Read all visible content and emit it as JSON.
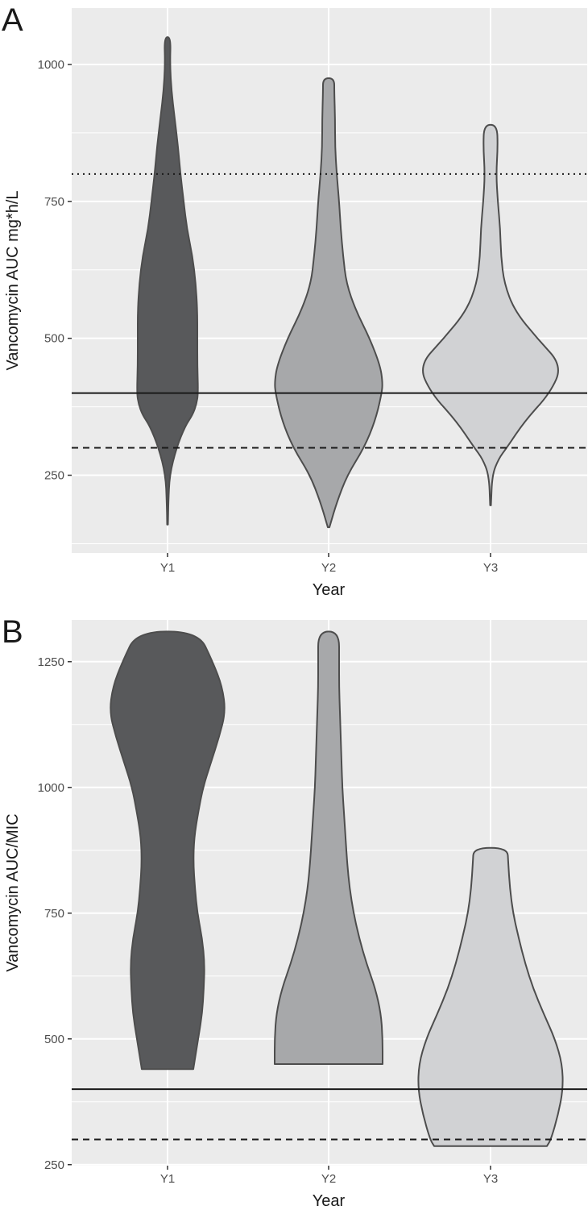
{
  "chart_data": [
    {
      "panel_label": "A",
      "type": "violin",
      "xlabel": "Year",
      "ylabel": "Vancomycin AUC mg*h/L",
      "categories": [
        "Y1",
        "Y2",
        "Y3"
      ],
      "yticks": [
        250,
        500,
        750,
        1000
      ],
      "ylim": [
        108,
        1103
      ],
      "grid": true,
      "reference_lines": [
        {
          "y": 400,
          "style": "solid"
        },
        {
          "y": 300,
          "style": "dashed"
        },
        {
          "y": 800,
          "style": "dotted"
        }
      ],
      "series": [
        {
          "category": "Y1",
          "fill": "#58595b",
          "profile": [
            [
              160,
              0.5
            ],
            [
              200,
              1
            ],
            [
              250,
              2.5
            ],
            [
              300,
              11
            ],
            [
              340,
              22
            ],
            [
              360,
              31
            ],
            [
              380,
              36
            ],
            [
              400,
              38
            ],
            [
              450,
              37
            ],
            [
              500,
              37
            ],
            [
              550,
              37
            ],
            [
              600,
              35
            ],
            [
              650,
              31
            ],
            [
              700,
              24
            ],
            [
              750,
              20
            ],
            [
              800,
              16
            ],
            [
              850,
              13
            ],
            [
              900,
              9
            ],
            [
              950,
              5
            ],
            [
              1000,
              3
            ],
            [
              1050,
              4
            ]
          ]
        },
        {
          "category": "Y2",
          "fill": "#a7a8aa",
          "profile": [
            [
              155,
              1
            ],
            [
              200,
              10
            ],
            [
              250,
              23
            ],
            [
              300,
              44
            ],
            [
              350,
              58
            ],
            [
              400,
              66
            ],
            [
              420,
              67
            ],
            [
              450,
              64
            ],
            [
              500,
              51
            ],
            [
              550,
              34
            ],
            [
              600,
              22
            ],
            [
              650,
              18
            ],
            [
              700,
              15
            ],
            [
              750,
              13
            ],
            [
              800,
              10
            ],
            [
              850,
              8
            ],
            [
              900,
              8
            ],
            [
              950,
              7
            ],
            [
              975,
              7
            ]
          ]
        },
        {
          "category": "Y3",
          "fill": "#d1d2d4",
          "profile": [
            [
              195,
              0.5
            ],
            [
              250,
              2
            ],
            [
              280,
              10
            ],
            [
              300,
              20
            ],
            [
              350,
              43
            ],
            [
              400,
              74
            ],
            [
              450,
              89
            ],
            [
              500,
              58
            ],
            [
              550,
              30
            ],
            [
              600,
              17
            ],
            [
              650,
              13
            ],
            [
              700,
              12
            ],
            [
              750,
              9
            ],
            [
              800,
              7
            ],
            [
              850,
              9
            ],
            [
              890,
              8
            ]
          ]
        }
      ]
    },
    {
      "panel_label": "B",
      "type": "violin",
      "xlabel": "Year",
      "ylabel": "Vancomycin AUC/MIC",
      "categories": [
        "Y1",
        "Y2",
        "Y3"
      ],
      "yticks": [
        250,
        500,
        750,
        1000,
        1250
      ],
      "ylim": [
        248,
        1333
      ],
      "grid": true,
      "reference_lines": [
        {
          "y": 400,
          "style": "solid"
        },
        {
          "y": 300,
          "style": "dashed"
        }
      ],
      "series": [
        {
          "category": "Y1",
          "fill": "#58595b",
          "profile": [
            [
              440,
              32
            ],
            [
              500,
              38
            ],
            [
              550,
              43
            ],
            [
              600,
              45
            ],
            [
              650,
              46
            ],
            [
              700,
              43
            ],
            [
              750,
              37
            ],
            [
              800,
              34
            ],
            [
              850,
              32
            ],
            [
              900,
              33
            ],
            [
              950,
              38
            ],
            [
              1000,
              44
            ],
            [
              1050,
              54
            ],
            [
              1100,
              64
            ],
            [
              1150,
              72
            ],
            [
              1200,
              68
            ],
            [
              1250,
              56
            ],
            [
              1310,
              38
            ]
          ]
        },
        {
          "category": "Y2",
          "fill": "#a7a8aa",
          "profile": [
            [
              450,
              67
            ],
            [
              500,
              67
            ],
            [
              550,
              65
            ],
            [
              600,
              58
            ],
            [
              650,
              47
            ],
            [
              700,
              38
            ],
            [
              750,
              31
            ],
            [
              800,
              26
            ],
            [
              850,
              23
            ],
            [
              900,
              21
            ],
            [
              950,
              19
            ],
            [
              1000,
              17
            ],
            [
              1050,
              16
            ],
            [
              1100,
              15
            ],
            [
              1150,
              14
            ],
            [
              1200,
              13
            ],
            [
              1250,
              13
            ],
            [
              1310,
              13
            ]
          ]
        },
        {
          "category": "Y3",
          "fill": "#d1d2d4",
          "profile": [
            [
              287,
              70
            ],
            [
              300,
              75
            ],
            [
              350,
              84
            ],
            [
              400,
              90
            ],
            [
              450,
              89
            ],
            [
              500,
              80
            ],
            [
              550,
              66
            ],
            [
              600,
              53
            ],
            [
              650,
              43
            ],
            [
              700,
              35
            ],
            [
              750,
              28
            ],
            [
              800,
              24
            ],
            [
              850,
              22
            ],
            [
              880,
              21
            ]
          ]
        }
      ]
    }
  ],
  "colors": {
    "panel_bg": "#ebebeb",
    "grid": "#ffffff",
    "violin_stroke": "#4d4d4d",
    "ref_line": "#1a1a1a"
  }
}
